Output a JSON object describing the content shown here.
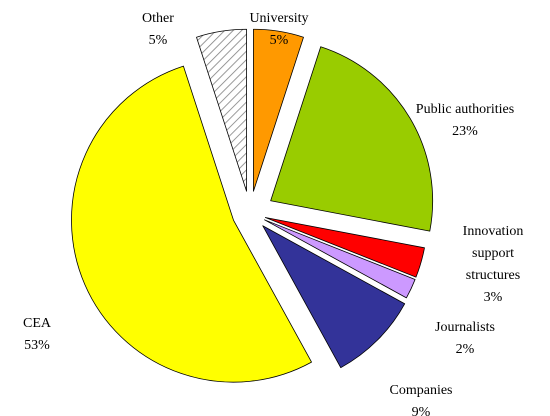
{
  "chart_data": {
    "type": "pie",
    "exploded": true,
    "slices": [
      {
        "label_lines": [
          "University"
        ],
        "value": 5,
        "value_label": "5%",
        "color": "#ff9900",
        "pattern": null
      },
      {
        "label_lines": [
          "Public authorities"
        ],
        "value": 23,
        "value_label": "23%",
        "color": "#99cc00",
        "pattern": null
      },
      {
        "label_lines": [
          "Innovation",
          "support",
          "structures"
        ],
        "value": 3,
        "value_label": "3%",
        "color": "#ff0000",
        "pattern": null
      },
      {
        "label_lines": [
          "Journalists"
        ],
        "value": 2,
        "value_label": "2%",
        "color": "#cc99ff",
        "pattern": null
      },
      {
        "label_lines": [
          "Companies"
        ],
        "value": 9,
        "value_label": "9%",
        "color": "#333399",
        "pattern": null
      },
      {
        "label_lines": [
          "CEA"
        ],
        "value": 53,
        "value_label": "53%",
        "color": "#ffff00",
        "pattern": null
      },
      {
        "label_lines": [
          "Other"
        ],
        "value": 5,
        "value_label": "5%",
        "color": "#ffffff",
        "pattern": "diagonal-hatch"
      }
    ]
  }
}
